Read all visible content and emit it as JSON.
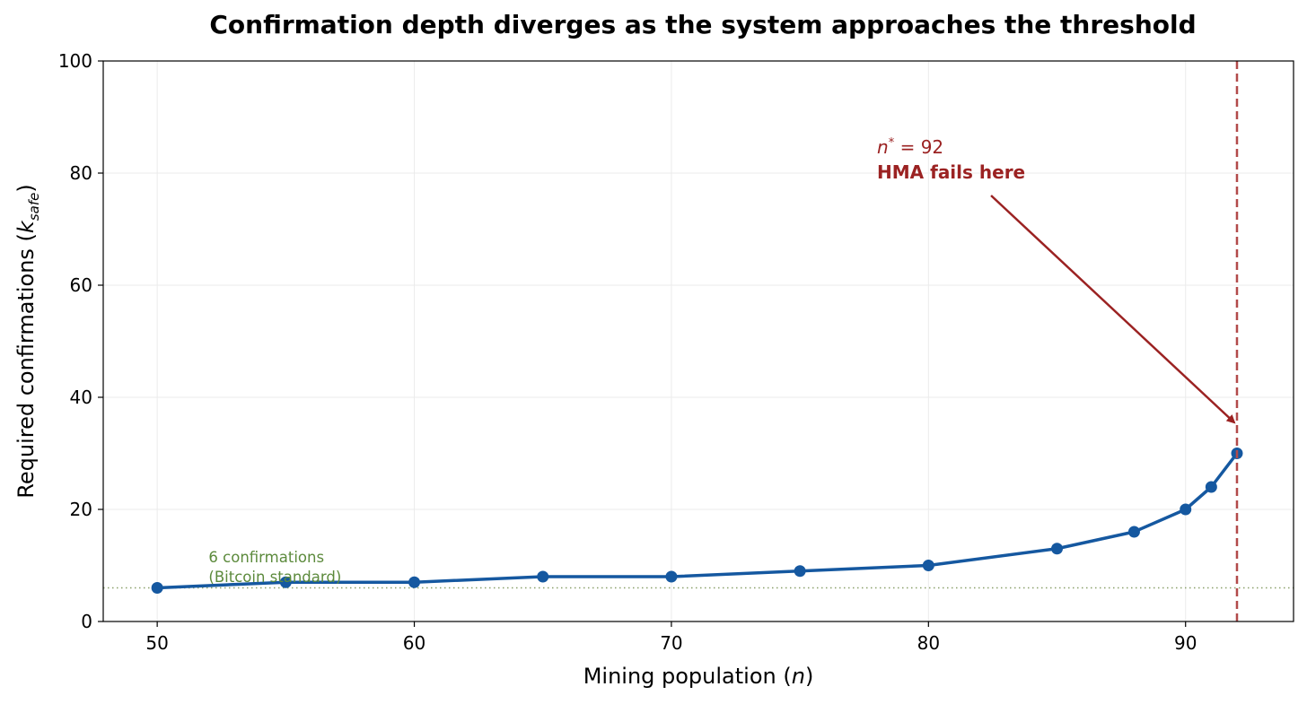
{
  "chart_data": {
    "type": "line",
    "title": "Confirmation depth diverges as the system approaches the threshold",
    "xlabel": {
      "prefix": "Mining population (",
      "var": "n",
      "suffix": ")"
    },
    "ylabel": {
      "prefix": "Required confirmations (",
      "var": "k",
      "sub": "safe",
      "suffix": ")"
    },
    "xlim": [
      47.9,
      94.2
    ],
    "ylim": [
      0,
      100
    ],
    "xticks": [
      50,
      60,
      70,
      80,
      90
    ],
    "yticks": [
      0,
      20,
      40,
      60,
      80,
      100
    ],
    "grid": true,
    "series": [
      {
        "name": "Required confirmations",
        "color": "#1558a0",
        "x": [
          50,
          55,
          60,
          65,
          70,
          75,
          80,
          85,
          88,
          90,
          91,
          92
        ],
        "y": [
          6,
          7,
          7,
          8,
          8,
          9,
          10,
          13,
          16,
          20,
          24,
          30
        ]
      }
    ],
    "reference_line": {
      "y": 6,
      "color": "#8aa06a",
      "label_line1": "6 confirmations",
      "label_line2": "(Bitcoin standard)",
      "label_color": "#5c8a3c",
      "label_x": 52,
      "label_y": 8
    },
    "threshold_line": {
      "x": 92,
      "color": "#b24a4a"
    },
    "annotation": {
      "var": "n",
      "sup": "*",
      "eq": " = 92",
      "line2": "HMA fails here",
      "color": "#9b2222",
      "text_x": 78,
      "text_y": 80,
      "arrow_tip_x": 92,
      "arrow_tip_y": 35.5
    }
  }
}
